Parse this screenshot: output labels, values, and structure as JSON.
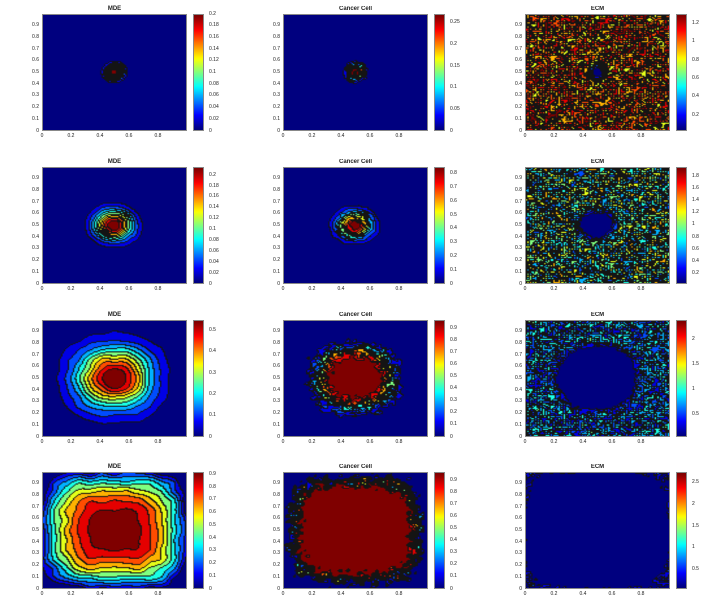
{
  "chart_data": [
    {
      "type": "heatmap",
      "title": "MDE",
      "field": "MDE",
      "clim": [
        0,
        0.2
      ],
      "colorbar_ticks": [
        "0",
        "0.02",
        "0.04",
        "0.06",
        "0.08",
        "0.1",
        "0.12",
        "0.14",
        "0.16",
        "0.18",
        "0.2"
      ],
      "colorbar_values": [
        0,
        0.02,
        0.04,
        0.06,
        0.08,
        0.1,
        0.12,
        0.14,
        0.16,
        0.18,
        0.2
      ],
      "colormap": "jet"
    },
    {
      "type": "heatmap",
      "title": "Cancer Cell",
      "field": "CC",
      "clim": [
        0,
        0.27
      ],
      "colorbar_ticks": [
        "0",
        "0.05",
        "0.1",
        "0.15",
        "0.2",
        "0.25"
      ],
      "colorbar_values": [
        0,
        0.05,
        0.1,
        0.15,
        0.2,
        0.25
      ],
      "colormap": "jet"
    },
    {
      "type": "heatmap",
      "title": "ECM",
      "field": "ECM",
      "clim": [
        0.03,
        1.3
      ],
      "colorbar_ticks": [
        "0.2",
        "0.4",
        "0.6",
        "0.8",
        "1",
        "1.2"
      ],
      "colorbar_values": [
        0.2,
        0.4,
        0.6,
        0.8,
        1,
        1.2
      ],
      "colormap": "jet"
    },
    {
      "type": "heatmap",
      "title": "MDE",
      "field": "MDE",
      "clim": [
        0,
        0.215
      ],
      "colorbar_ticks": [
        "0",
        "0.02",
        "0.04",
        "0.06",
        "0.08",
        "0.1",
        "0.12",
        "0.14",
        "0.16",
        "0.18",
        "0.2"
      ],
      "colorbar_values": [
        0,
        0.02,
        0.04,
        0.06,
        0.08,
        0.1,
        0.12,
        0.14,
        0.16,
        0.18,
        0.2
      ],
      "colormap": "jet"
    },
    {
      "type": "heatmap",
      "title": "Cancer Cell",
      "field": "CC",
      "clim": [
        0,
        0.85
      ],
      "colorbar_ticks": [
        "0",
        "0.1",
        "0.2",
        "0.3",
        "0.4",
        "0.5",
        "0.6",
        "0.7",
        "0.8"
      ],
      "colorbar_values": [
        0,
        0.1,
        0.2,
        0.3,
        0.4,
        0.5,
        0.6,
        0.7,
        0.8
      ],
      "colormap": "jet"
    },
    {
      "type": "heatmap",
      "title": "ECM",
      "field": "ECM",
      "clim": [
        0.03,
        1.95
      ],
      "colorbar_ticks": [
        "0.2",
        "0.4",
        "0.6",
        "0.8",
        "1",
        "1.2",
        "1.4",
        "1.6",
        "1.8"
      ],
      "colorbar_values": [
        0.2,
        0.4,
        0.6,
        0.8,
        1,
        1.2,
        1.4,
        1.6,
        1.8
      ],
      "colormap": "jet"
    },
    {
      "type": "heatmap",
      "title": "MDE",
      "field": "MDE",
      "clim": [
        0,
        0.55
      ],
      "colorbar_ticks": [
        "0",
        "0.1",
        "0.2",
        "0.3",
        "0.4",
        "0.5"
      ],
      "colorbar_values": [
        0,
        0.1,
        0.2,
        0.3,
        0.4,
        0.5
      ],
      "colormap": "jet"
    },
    {
      "type": "heatmap",
      "title": "Cancer Cell",
      "field": "CC",
      "clim": [
        0,
        0.97
      ],
      "colorbar_ticks": [
        "0",
        "0.1",
        "0.2",
        "0.3",
        "0.4",
        "0.5",
        "0.6",
        "0.7",
        "0.8",
        "0.9"
      ],
      "colorbar_values": [
        0,
        0.1,
        0.2,
        0.3,
        0.4,
        0.5,
        0.6,
        0.7,
        0.8,
        0.9
      ],
      "colormap": "jet"
    },
    {
      "type": "heatmap",
      "title": "ECM",
      "field": "ECM",
      "clim": [
        0.05,
        2.4
      ],
      "colorbar_ticks": [
        "0.5",
        "1",
        "1.5",
        "2"
      ],
      "colorbar_values": [
        0.5,
        1,
        1.5,
        2
      ],
      "colormap": "jet"
    },
    {
      "type": "heatmap",
      "title": "MDE",
      "field": "MDE",
      "clim": [
        0,
        0.92
      ],
      "colorbar_ticks": [
        "0",
        "0.1",
        "0.2",
        "0.3",
        "0.4",
        "0.5",
        "0.6",
        "0.7",
        "0.8",
        "0.9"
      ],
      "colorbar_values": [
        0,
        0.1,
        0.2,
        0.3,
        0.4,
        0.5,
        0.6,
        0.7,
        0.8,
        0.9
      ],
      "colormap": "jet"
    },
    {
      "type": "heatmap",
      "title": "Cancer Cell",
      "field": "CC",
      "clim": [
        0,
        0.97
      ],
      "colorbar_ticks": [
        "0",
        "0.1",
        "0.2",
        "0.3",
        "0.4",
        "0.5",
        "0.6",
        "0.7",
        "0.8",
        "0.9"
      ],
      "colorbar_values": [
        0,
        0.1,
        0.2,
        0.3,
        0.4,
        0.5,
        0.6,
        0.7,
        0.8,
        0.9
      ],
      "colormap": "jet"
    },
    {
      "type": "heatmap",
      "title": "ECM",
      "field": "ECM",
      "clim": [
        0.05,
        2.75
      ],
      "colorbar_ticks": [
        "0.5",
        "1",
        "1.5",
        "2",
        "2.5"
      ],
      "colorbar_values": [
        0.5,
        1,
        1.5,
        2,
        2.5
      ],
      "colormap": "jet"
    }
  ],
  "axes": {
    "xlim": [
      0,
      1
    ],
    "ylim": [
      0,
      1
    ],
    "x_ticks": [
      "0",
      "0.2",
      "0.4",
      "0.6",
      "0.8"
    ],
    "x_values": [
      0,
      0.2,
      0.4,
      0.6,
      0.8
    ],
    "y_ticks": [
      "0",
      "0.1",
      "0.2",
      "0.3",
      "0.4",
      "0.5",
      "0.6",
      "0.7",
      "0.8",
      "0.9"
    ],
    "y_values": [
      0,
      0.1,
      0.2,
      0.3,
      0.4,
      0.5,
      0.6,
      0.7,
      0.8,
      0.9
    ]
  }
}
